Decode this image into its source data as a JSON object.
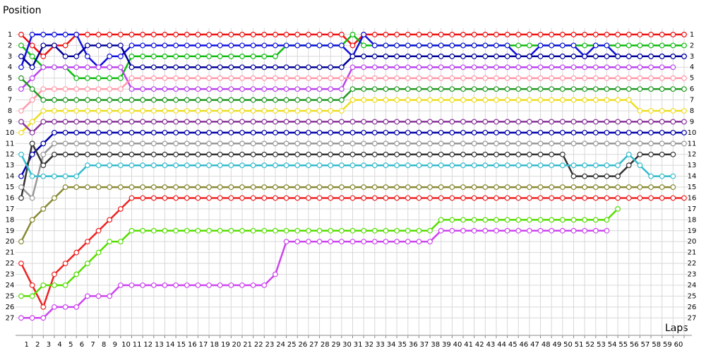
{
  "chart_data": {
    "type": "line",
    "ylabel": "Position",
    "xlabel": "Laps",
    "x": [
      0,
      1,
      2,
      3,
      4,
      5,
      6,
      7,
      8,
      9,
      10,
      11,
      12,
      13,
      14,
      15,
      16,
      17,
      18,
      19,
      20,
      21,
      22,
      23,
      24,
      25,
      26,
      27,
      28,
      29,
      30,
      31,
      32,
      33,
      34,
      35,
      36,
      37,
      38,
      39,
      40,
      41,
      42,
      43,
      44,
      45,
      46,
      47,
      48,
      49,
      50,
      51,
      52,
      53,
      54,
      55,
      56,
      57,
      58,
      59,
      60
    ],
    "xlim": [
      0,
      60
    ],
    "xticks": [
      1,
      2,
      3,
      4,
      5,
      6,
      7,
      8,
      9,
      10,
      11,
      12,
      13,
      14,
      15,
      16,
      17,
      18,
      19,
      20,
      21,
      22,
      23,
      24,
      25,
      26,
      27,
      28,
      29,
      30,
      31,
      32,
      33,
      34,
      35,
      36,
      37,
      38,
      39,
      40,
      41,
      42,
      43,
      44,
      45,
      46,
      47,
      48,
      49,
      50,
      51,
      52,
      53,
      54,
      55,
      56,
      57,
      58,
      59,
      60
    ],
    "ylim": [
      28.6,
      0
    ],
    "yticks": [
      1,
      2,
      3,
      4,
      5,
      6,
      7,
      8,
      9,
      10,
      11,
      12,
      13,
      14,
      15,
      16,
      17,
      18,
      19,
      20,
      21,
      22,
      23,
      24,
      25,
      26,
      27
    ],
    "grid": true,
    "series": [
      {
        "color": "#ee1111",
        "values": [
          1,
          2,
          3,
          2,
          2,
          1,
          1,
          1,
          1,
          1,
          1,
          1,
          1,
          1,
          1,
          1,
          1,
          1,
          1,
          1,
          1,
          1,
          1,
          1,
          1,
          1,
          1,
          1,
          1,
          1,
          2,
          1,
          1,
          1,
          1,
          1,
          1,
          1,
          1,
          1,
          1,
          1,
          1,
          1,
          1,
          1,
          1,
          1,
          1,
          1,
          1,
          1,
          1,
          1,
          1,
          1,
          1,
          1,
          1,
          1,
          1
        ]
      },
      {
        "color": "#11bb11",
        "values": [
          2,
          3,
          4,
          4,
          4,
          5,
          5,
          5,
          5,
          5,
          3,
          3,
          3,
          3,
          3,
          3,
          3,
          3,
          3,
          3,
          3,
          3,
          3,
          3,
          2,
          2,
          2,
          2,
          2,
          2,
          1,
          2,
          2,
          2,
          2,
          2,
          2,
          2,
          2,
          2,
          2,
          2,
          2,
          2,
          2,
          2,
          2,
          2,
          2,
          2,
          2,
          2,
          2,
          2,
          2,
          2,
          2,
          2,
          2,
          2,
          2
        ]
      },
      {
        "color": "#1111dd",
        "values": [
          4,
          1,
          1,
          1,
          1,
          1,
          3,
          4,
          3,
          3,
          2,
          2,
          2,
          2,
          2,
          2,
          2,
          2,
          2,
          2,
          2,
          2,
          2,
          2,
          2,
          2,
          2,
          2,
          2,
          2,
          3,
          1,
          2,
          2,
          2,
          2,
          2,
          2,
          2,
          2,
          2,
          2,
          2,
          2,
          2,
          3,
          3,
          2,
          2,
          2,
          2,
          3,
          2,
          2,
          3,
          3,
          3,
          3,
          3,
          3,
          3
        ]
      },
      {
        "color": "#bb44ee",
        "values": [
          6,
          5,
          4,
          4,
          4,
          4,
          4,
          4,
          4,
          4,
          6,
          6,
          6,
          6,
          6,
          6,
          6,
          6,
          6,
          6,
          6,
          6,
          6,
          6,
          6,
          6,
          6,
          6,
          6,
          6,
          4,
          4,
          4,
          4,
          4,
          4,
          4,
          4,
          4,
          4,
          4,
          4,
          4,
          4,
          4,
          4,
          4,
          4,
          4,
          4,
          4,
          4,
          4,
          4,
          4,
          4,
          4,
          4,
          4,
          4,
          null
        ]
      },
      {
        "color": "#000099",
        "values": [
          3,
          4,
          2,
          2,
          3,
          3,
          2,
          2,
          2,
          2,
          4,
          4,
          4,
          4,
          4,
          4,
          4,
          4,
          4,
          4,
          4,
          4,
          4,
          4,
          4,
          4,
          4,
          4,
          4,
          4,
          3,
          3,
          3,
          3,
          3,
          3,
          3,
          3,
          3,
          3,
          3,
          3,
          3,
          3,
          3,
          3,
          3,
          3,
          3,
          3,
          3,
          3,
          3,
          3,
          3,
          3,
          3,
          3,
          3,
          3,
          3
        ]
      },
      {
        "color": "#ff9aaa",
        "values": [
          8,
          7,
          6,
          6,
          6,
          6,
          6,
          6,
          6,
          6,
          5,
          5,
          5,
          5,
          5,
          5,
          5,
          5,
          5,
          5,
          5,
          5,
          5,
          5,
          5,
          5,
          5,
          5,
          5,
          5,
          5,
          5,
          5,
          5,
          5,
          5,
          5,
          5,
          5,
          5,
          5,
          5,
          5,
          5,
          5,
          5,
          5,
          5,
          5,
          5,
          5,
          5,
          5,
          5,
          5,
          5,
          5,
          5,
          5,
          5,
          5
        ]
      },
      {
        "color": "#229922",
        "values": [
          5,
          6,
          7,
          7,
          7,
          7,
          7,
          7,
          7,
          7,
          7,
          7,
          7,
          7,
          7,
          7,
          7,
          7,
          7,
          7,
          7,
          7,
          7,
          7,
          7,
          7,
          7,
          7,
          7,
          7,
          6,
          6,
          6,
          6,
          6,
          6,
          6,
          6,
          6,
          6,
          6,
          6,
          6,
          6,
          6,
          6,
          6,
          6,
          6,
          6,
          6,
          6,
          6,
          6,
          6,
          6,
          6,
          6,
          6,
          6,
          6
        ]
      },
      {
        "color": "#eedd22",
        "values": [
          10,
          9,
          8,
          8,
          8,
          8,
          8,
          8,
          8,
          8,
          8,
          8,
          8,
          8,
          8,
          8,
          8,
          8,
          8,
          8,
          8,
          8,
          8,
          8,
          8,
          8,
          8,
          8,
          8,
          8,
          7,
          7,
          7,
          7,
          7,
          7,
          7,
          7,
          7,
          7,
          7,
          7,
          7,
          7,
          7,
          7,
          7,
          7,
          7,
          7,
          7,
          7,
          7,
          7,
          7,
          7,
          8,
          8,
          8,
          8,
          8
        ]
      },
      {
        "color": "#883399",
        "values": [
          9,
          10,
          9,
          9,
          9,
          9,
          9,
          9,
          9,
          9,
          9,
          9,
          9,
          9,
          9,
          9,
          9,
          9,
          9,
          9,
          9,
          9,
          9,
          9,
          9,
          9,
          9,
          9,
          9,
          9,
          9,
          9,
          9,
          9,
          9,
          9,
          9,
          9,
          9,
          9,
          9,
          9,
          9,
          9,
          9,
          9,
          9,
          9,
          9,
          9,
          9,
          9,
          9,
          9,
          9,
          9,
          9,
          9,
          9,
          9,
          9
        ]
      },
      {
        "color": "#0000aa",
        "values": [
          14,
          12,
          11,
          10,
          10,
          10,
          10,
          10,
          10,
          10,
          10,
          10,
          10,
          10,
          10,
          10,
          10,
          10,
          10,
          10,
          10,
          10,
          10,
          10,
          10,
          10,
          10,
          10,
          10,
          10,
          10,
          10,
          10,
          10,
          10,
          10,
          10,
          10,
          10,
          10,
          10,
          10,
          10,
          10,
          10,
          10,
          10,
          10,
          10,
          10,
          10,
          10,
          10,
          10,
          10,
          10,
          10,
          10,
          10,
          10,
          10
        ]
      },
      {
        "color": "#999999",
        "values": [
          15,
          16,
          12,
          11,
          11,
          11,
          11,
          11,
          11,
          11,
          11,
          11,
          11,
          11,
          11,
          11,
          11,
          11,
          11,
          11,
          11,
          11,
          11,
          11,
          11,
          11,
          11,
          11,
          11,
          11,
          11,
          11,
          11,
          11,
          11,
          11,
          11,
          11,
          11,
          11,
          11,
          11,
          11,
          11,
          11,
          11,
          11,
          11,
          11,
          11,
          11,
          11,
          11,
          11,
          11,
          11,
          11,
          11,
          11,
          11,
          11
        ]
      },
      {
        "color": "#333333",
        "values": [
          16,
          11,
          13,
          12,
          12,
          12,
          12,
          12,
          12,
          12,
          12,
          12,
          12,
          12,
          12,
          12,
          12,
          12,
          12,
          12,
          12,
          12,
          12,
          12,
          12,
          12,
          12,
          12,
          12,
          12,
          12,
          12,
          12,
          12,
          12,
          12,
          12,
          12,
          12,
          12,
          12,
          12,
          12,
          12,
          12,
          12,
          12,
          12,
          12,
          12,
          14,
          14,
          14,
          14,
          14,
          13,
          12,
          12,
          12,
          12,
          null
        ]
      },
      {
        "color": "#33bbcc",
        "values": [
          12,
          14,
          14,
          14,
          14,
          14,
          13,
          13,
          13,
          13,
          13,
          13,
          13,
          13,
          13,
          13,
          13,
          13,
          13,
          13,
          13,
          13,
          13,
          13,
          13,
          13,
          13,
          13,
          13,
          13,
          13,
          13,
          13,
          13,
          13,
          13,
          13,
          13,
          13,
          13,
          13,
          13,
          13,
          13,
          13,
          13,
          13,
          13,
          13,
          13,
          13,
          13,
          13,
          13,
          13,
          12,
          13,
          14,
          14,
          14,
          null
        ]
      },
      {
        "color": "#888833",
        "values": [
          20,
          18,
          17,
          16,
          15,
          15,
          15,
          15,
          15,
          15,
          15,
          15,
          15,
          15,
          15,
          15,
          15,
          15,
          15,
          15,
          15,
          15,
          15,
          15,
          15,
          15,
          15,
          15,
          15,
          15,
          15,
          15,
          15,
          15,
          15,
          15,
          15,
          15,
          15,
          15,
          15,
          15,
          15,
          15,
          15,
          15,
          15,
          15,
          15,
          15,
          15,
          15,
          15,
          15,
          15,
          15,
          15,
          15,
          15,
          15,
          null
        ]
      },
      {
        "color": "#ee2222",
        "values": [
          22,
          24,
          26,
          23,
          22,
          21,
          20,
          19,
          18,
          17,
          16,
          16,
          16,
          16,
          16,
          16,
          16,
          16,
          16,
          16,
          16,
          16,
          16,
          16,
          16,
          16,
          16,
          16,
          16,
          16,
          16,
          16,
          16,
          16,
          16,
          16,
          16,
          16,
          16,
          16,
          16,
          16,
          16,
          16,
          16,
          16,
          16,
          16,
          16,
          16,
          16,
          16,
          16,
          16,
          16,
          16,
          16,
          16,
          16,
          16,
          16
        ]
      },
      {
        "color": "#55dd00",
        "values": [
          25,
          25,
          24,
          24,
          24,
          23,
          22,
          21,
          20,
          20,
          19,
          19,
          19,
          19,
          19,
          19,
          19,
          19,
          19,
          19,
          19,
          19,
          19,
          19,
          19,
          19,
          19,
          19,
          19,
          19,
          19,
          19,
          19,
          19,
          19,
          19,
          19,
          19,
          18,
          18,
          18,
          18,
          18,
          18,
          18,
          18,
          18,
          18,
          18,
          18,
          18,
          18,
          18,
          18,
          17,
          null,
          null,
          null,
          null,
          null,
          null
        ]
      },
      {
        "color": "#cc44ee",
        "values": [
          27,
          27,
          27,
          26,
          26,
          26,
          25,
          25,
          25,
          24,
          24,
          24,
          24,
          24,
          24,
          24,
          24,
          24,
          24,
          24,
          24,
          24,
          24,
          23,
          20,
          20,
          20,
          20,
          20,
          20,
          20,
          20,
          20,
          20,
          20,
          20,
          20,
          20,
          19,
          19,
          19,
          19,
          19,
          19,
          19,
          19,
          19,
          19,
          19,
          19,
          19,
          19,
          19,
          19,
          null,
          null,
          null,
          null,
          null,
          null,
          null
        ]
      }
    ]
  }
}
